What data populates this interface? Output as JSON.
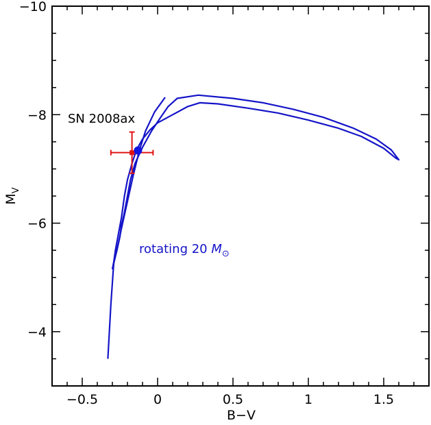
{
  "chart_data": {
    "type": "line",
    "xlabel": "B−V",
    "ylabel": "M",
    "ylabel_sub": "V",
    "xlim": [
      -0.7,
      1.8
    ],
    "ylim": [
      -3.0,
      -10.0
    ],
    "y_inverted": true,
    "xticks": [
      -0.5,
      0,
      0.5,
      1,
      1.5
    ],
    "xtick_labels": [
      "−0.5",
      "0",
      "0.5",
      "1",
      "1.5"
    ],
    "yticks": [
      -4,
      -6,
      -8,
      -10
    ],
    "ytick_labels": [
      "−4",
      "−6",
      "−8",
      "−10"
    ],
    "grid": false,
    "colors": {
      "track": "#1414c8",
      "observation": "#e01414",
      "model_point": "#1414e0"
    },
    "series": [
      {
        "color": "#1414c8",
        "points": [
          [
            -0.33,
            -3.5
          ],
          [
            -0.32,
            -4.0
          ],
          [
            -0.31,
            -4.5
          ],
          [
            -0.3,
            -4.9
          ],
          [
            -0.29,
            -5.3
          ],
          [
            -0.28,
            -5.5
          ],
          [
            -0.26,
            -5.8
          ],
          [
            -0.24,
            -6.1
          ],
          [
            -0.22,
            -6.5
          ],
          [
            -0.2,
            -6.8
          ],
          [
            -0.17,
            -7.1
          ],
          [
            -0.14,
            -7.35
          ],
          [
            -0.1,
            -7.55
          ],
          [
            -0.05,
            -7.72
          ],
          [
            0.0,
            -7.85
          ],
          [
            0.1,
            -8.0
          ],
          [
            0.2,
            -8.15
          ],
          [
            0.28,
            -8.22
          ],
          [
            0.4,
            -8.2
          ],
          [
            0.6,
            -8.12
          ],
          [
            0.8,
            -8.03
          ],
          [
            1.0,
            -7.9
          ],
          [
            1.2,
            -7.75
          ],
          [
            1.35,
            -7.6
          ],
          [
            1.5,
            -7.38
          ],
          [
            1.58,
            -7.2
          ],
          [
            1.6,
            -7.17
          ],
          [
            1.55,
            -7.35
          ],
          [
            1.45,
            -7.55
          ],
          [
            1.3,
            -7.75
          ],
          [
            1.1,
            -7.95
          ],
          [
            0.9,
            -8.1
          ],
          [
            0.7,
            -8.22
          ],
          [
            0.5,
            -8.3
          ],
          [
            0.27,
            -8.36
          ],
          [
            0.13,
            -8.3
          ],
          [
            0.07,
            -8.15
          ],
          [
            0.02,
            -7.95
          ],
          [
            -0.04,
            -7.7
          ],
          [
            -0.1,
            -7.4
          ],
          [
            -0.15,
            -7.1
          ],
          [
            -0.18,
            -6.8
          ],
          [
            -0.2,
            -6.5
          ],
          [
            -0.22,
            -6.2
          ],
          [
            -0.24,
            -5.95
          ],
          [
            -0.25,
            -5.75
          ],
          [
            -0.27,
            -5.5
          ],
          [
            -0.29,
            -5.3
          ],
          [
            -0.3,
            -5.15
          ]
        ]
      },
      {
        "color": "#1414c8",
        "points": [
          [
            -0.3,
            -5.15
          ],
          [
            -0.27,
            -5.5
          ],
          [
            -0.24,
            -5.9
          ],
          [
            -0.2,
            -6.4
          ],
          [
            -0.16,
            -6.9
          ],
          [
            -0.12,
            -7.35
          ],
          [
            -0.08,
            -7.7
          ],
          [
            -0.02,
            -8.05
          ],
          [
            0.05,
            -8.32
          ]
        ]
      }
    ],
    "observation": {
      "label": "SN 2008ax",
      "x": -0.17,
      "y": -7.3,
      "x_err": 0.14,
      "y_err": 0.38
    },
    "model_point": {
      "x": -0.13,
      "y": -7.34
    },
    "annotations": {
      "sn_label": "SN 2008ax",
      "track_label": "rotating 20 ",
      "track_label_mass": "M",
      "track_label_sun": "⊙"
    }
  }
}
